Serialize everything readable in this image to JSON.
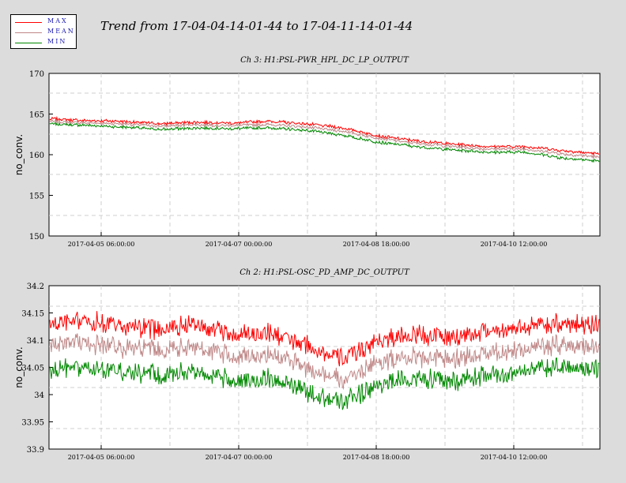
{
  "header": {
    "title": "Trend from 17-04-04-14-01-44 to 17-04-11-14-01-44"
  },
  "legend": [
    {
      "label": "MAX",
      "color": "#ff0000"
    },
    {
      "label": "MEAN",
      "color": "#c08888"
    },
    {
      "label": "MIN",
      "color": "#008800"
    }
  ],
  "chart_data": [
    {
      "type": "line",
      "title": "Ch 3: H1:PSL-PWR_HPL_DC_LP_OUTPUT",
      "ylabel": "no_conv.",
      "xlabel": "",
      "ylim": [
        150,
        170
      ],
      "yticks": [
        "150",
        "155",
        "160",
        "165",
        "170"
      ],
      "xlim": [
        "2017-04-04 14:01:44",
        "2017-04-11 14:01:44"
      ],
      "xticks": [
        "2017-04-05 06:00:00",
        "2017-04-07 00:00:00",
        "2017-04-08 18:00:00",
        "2017-04-10 12:00:00"
      ],
      "grid": true,
      "series": [
        {
          "name": "MAX",
          "color": "#ff0000",
          "values": [
            164.4,
            164.2,
            164.1,
            163.8,
            164.0,
            163.9,
            164.1,
            163.8,
            163.3,
            162.3,
            161.7,
            161.3,
            161.0,
            161.0,
            160.5,
            160.1
          ]
        },
        {
          "name": "MEAN",
          "color": "#c08888",
          "values": [
            164.1,
            163.9,
            163.8,
            163.5,
            163.7,
            163.6,
            163.7,
            163.4,
            162.9,
            162.0,
            161.4,
            161.0,
            160.7,
            160.7,
            160.1,
            159.7
          ]
        },
        {
          "name": "MIN",
          "color": "#008800",
          "values": [
            163.8,
            163.6,
            163.4,
            163.1,
            163.3,
            163.2,
            163.3,
            163.0,
            162.4,
            161.5,
            161.0,
            160.6,
            160.3,
            160.3,
            159.6,
            159.2
          ]
        }
      ],
      "x": [
        "2017-04-04 14:01",
        "2017-04-05 01:13",
        "2017-04-05 12:25",
        "2017-04-05 23:37",
        "2017-04-06 10:49",
        "2017-04-06 22:01",
        "2017-04-07 09:13",
        "2017-04-07 20:25",
        "2017-04-08 07:37",
        "2017-04-08 18:49",
        "2017-04-09 06:01",
        "2017-04-09 17:13",
        "2017-04-10 04:25",
        "2017-04-10 15:37",
        "2017-04-11 02:49",
        "2017-04-11 14:01"
      ]
    },
    {
      "type": "line",
      "title": "Ch 2: H1:PSL-OSC_PD_AMP_DC_OUTPUT",
      "ylabel": "no_conv.",
      "xlabel": "",
      "ylim": [
        33.9,
        34.2
      ],
      "yticks": [
        "33.9",
        "33.95",
        "34",
        "34.05",
        "34.1",
        "34.15",
        "34.2"
      ],
      "xlim": [
        "2017-04-04 14:01:44",
        "2017-04-11 14:01:44"
      ],
      "xticks": [
        "2017-04-05 06:00:00",
        "2017-04-07 00:00:00",
        "2017-04-08 18:00:00",
        "2017-04-10 12:00:00"
      ],
      "grid": true,
      "series": [
        {
          "name": "MAX",
          "color": "#ff0000",
          "values": [
            34.13,
            34.135,
            34.125,
            34.12,
            34.13,
            34.11,
            34.115,
            34.09,
            34.065,
            34.1,
            34.11,
            34.105,
            34.115,
            34.125,
            34.13,
            34.13
          ]
        },
        {
          "name": "MEAN",
          "color": "#c08888",
          "values": [
            34.09,
            34.095,
            34.085,
            34.08,
            34.09,
            34.07,
            34.075,
            34.05,
            34.025,
            34.06,
            34.07,
            34.065,
            34.075,
            34.085,
            34.09,
            34.09
          ]
        },
        {
          "name": "MIN",
          "color": "#008800",
          "values": [
            34.045,
            34.05,
            34.04,
            34.035,
            34.045,
            34.025,
            34.03,
            34.005,
            33.985,
            34.02,
            34.03,
            34.025,
            34.035,
            34.045,
            34.05,
            34.05
          ]
        }
      ],
      "x": [
        "2017-04-04 14:01",
        "2017-04-05 01:13",
        "2017-04-05 12:25",
        "2017-04-05 23:37",
        "2017-04-06 10:49",
        "2017-04-06 22:01",
        "2017-04-07 09:13",
        "2017-04-07 20:25",
        "2017-04-08 07:37",
        "2017-04-08 18:49",
        "2017-04-09 06:01",
        "2017-04-09 17:13",
        "2017-04-10 04:25",
        "2017-04-10 15:37",
        "2017-04-11 02:49",
        "2017-04-11 14:01"
      ]
    }
  ]
}
